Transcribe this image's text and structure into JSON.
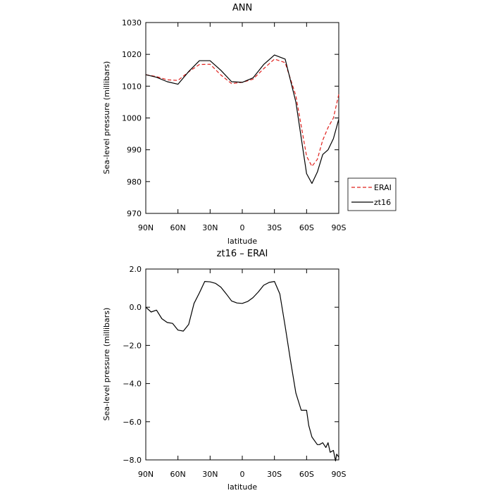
{
  "chart_data": [
    {
      "type": "line",
      "title": "ANN",
      "xlabel": "latitude",
      "ylabel": "Sea-level pressure (millibars)",
      "xlim": [
        90,
        -90
      ],
      "ylim": [
        970,
        1030
      ],
      "x_ticks": [
        90,
        60,
        30,
        0,
        -30,
        -60,
        -90
      ],
      "x_tick_labels": [
        "90N",
        "60N",
        "30N",
        "0",
        "30S",
        "60S",
        "90S"
      ],
      "y_ticks": [
        970,
        980,
        990,
        1000,
        1010,
        1020,
        1030
      ],
      "y_tick_labels": [
        "970",
        "980",
        "990",
        "1000",
        "1010",
        "1020",
        "1030"
      ],
      "legend": "right",
      "x": [
        90,
        80,
        70,
        60,
        50,
        40,
        30,
        20,
        10,
        0,
        -10,
        -20,
        -30,
        -40,
        -50,
        -60,
        -65,
        -70,
        -75,
        -80,
        -85,
        -90
      ],
      "series": [
        {
          "name": "ERAI",
          "color": "#e0201c",
          "dash": "dashed",
          "values": [
            1013.6,
            1013.0,
            1012.0,
            1011.8,
            1014.5,
            1016.8,
            1016.9,
            1013.5,
            1010.8,
            1011.2,
            1012.2,
            1015.5,
            1018.5,
            1017.4,
            1007.0,
            988.0,
            984.8,
            987.0,
            993.0,
            997.0,
            1000.0,
            1007.4
          ]
        },
        {
          "name": "zt16",
          "color": "#000000",
          "dash": "solid",
          "values": [
            1013.6,
            1012.8,
            1011.4,
            1010.6,
            1014.6,
            1018.0,
            1018.0,
            1015.0,
            1011.4,
            1011.2,
            1012.6,
            1016.8,
            1019.8,
            1018.5,
            1005.0,
            982.5,
            979.4,
            983.0,
            988.5,
            990.0,
            993.5,
            999.6
          ]
        }
      ]
    },
    {
      "type": "line",
      "title": "zt16 – ERAI",
      "xlabel": "latitude",
      "ylabel": "Sea-level pressure (millibars)",
      "xlim": [
        90,
        -90
      ],
      "ylim": [
        -8.0,
        2.0
      ],
      "x_ticks": [
        90,
        60,
        30,
        0,
        -30,
        -60,
        -90
      ],
      "x_tick_labels": [
        "90N",
        "60N",
        "30N",
        "0",
        "30S",
        "60S",
        "90S"
      ],
      "y_ticks": [
        -8,
        -6,
        -4,
        -2,
        0,
        2
      ],
      "y_tick_labels": [
        "−8.0",
        "−6.0",
        "−4.0",
        "−2.0",
        "0.0",
        "2.0"
      ],
      "x": [
        90,
        85,
        80,
        75,
        70,
        65,
        60,
        55,
        50,
        45,
        40,
        35,
        30,
        25,
        20,
        15,
        10,
        5,
        0,
        -5,
        -10,
        -15,
        -20,
        -25,
        -30,
        -35,
        -40,
        -45,
        -50,
        -55,
        -60,
        -62,
        -65,
        -70,
        -72,
        -75,
        -78,
        -80,
        -82,
        -85,
        -87,
        -88,
        -90
      ],
      "series": [
        {
          "name": "",
          "color": "#000000",
          "dash": "solid",
          "values": [
            0.0,
            -0.25,
            -0.15,
            -0.6,
            -0.8,
            -0.85,
            -1.2,
            -1.25,
            -0.9,
            0.2,
            0.75,
            1.35,
            1.33,
            1.25,
            1.05,
            0.7,
            0.33,
            0.22,
            0.2,
            0.3,
            0.5,
            0.8,
            1.15,
            1.3,
            1.35,
            0.7,
            -1.0,
            -2.8,
            -4.5,
            -5.4,
            -5.4,
            -6.2,
            -6.8,
            -7.2,
            -7.2,
            -7.1,
            -7.35,
            -7.1,
            -7.6,
            -7.5,
            -8.05,
            -7.7,
            -7.85
          ]
        }
      ]
    }
  ]
}
